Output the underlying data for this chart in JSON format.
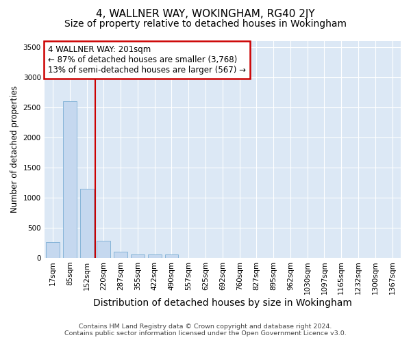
{
  "title": "4, WALLNER WAY, WOKINGHAM, RG40 2JY",
  "subtitle": "Size of property relative to detached houses in Wokingham",
  "xlabel": "Distribution of detached houses by size in Wokingham",
  "ylabel": "Number of detached properties",
  "footer_line1": "Contains HM Land Registry data © Crown copyright and database right 2024.",
  "footer_line2": "Contains public sector information licensed under the Open Government Licence v3.0.",
  "annotation_line1": "4 WALLNER WAY: 201sqm",
  "annotation_line2": "← 87% of detached houses are smaller (3,768)",
  "annotation_line3": "13% of semi-detached houses are larger (567) →",
  "bar_color": "#c5d8ef",
  "bar_edge_color": "#7aadd4",
  "vline_color": "#cc0000",
  "background_color": "#dce8f5",
  "grid_color": "#ffffff",
  "categories": [
    "17sqm",
    "85sqm",
    "152sqm",
    "220sqm",
    "287sqm",
    "355sqm",
    "422sqm",
    "490sqm",
    "557sqm",
    "625sqm",
    "692sqm",
    "760sqm",
    "827sqm",
    "895sqm",
    "962sqm",
    "1030sqm",
    "1097sqm",
    "1165sqm",
    "1232sqm",
    "1300sqm",
    "1367sqm"
  ],
  "values": [
    260,
    2600,
    1150,
    280,
    100,
    55,
    50,
    50,
    0,
    0,
    0,
    0,
    0,
    0,
    0,
    0,
    0,
    0,
    0,
    0,
    0
  ],
  "ylim": [
    0,
    3600
  ],
  "yticks": [
    0,
    500,
    1000,
    1500,
    2000,
    2500,
    3000,
    3500
  ],
  "vline_x": 2.5,
  "title_fontsize": 11,
  "subtitle_fontsize": 10,
  "xlabel_fontsize": 10,
  "ylabel_fontsize": 8.5,
  "tick_fontsize": 7.5,
  "annotation_fontsize": 8.5,
  "footer_fontsize": 6.8
}
